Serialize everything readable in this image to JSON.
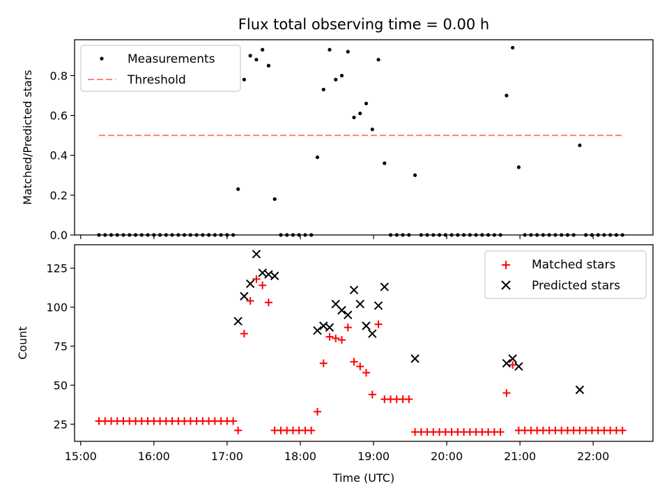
{
  "chart_data": [
    {
      "type": "scatter",
      "title": "Flux total observing time = 0.00 h",
      "ylabel": "Matched/Predicted stars",
      "ylim": [
        0,
        0.98
      ],
      "yticks": [
        "0.0",
        "0.2",
        "0.4",
        "0.6",
        "0.8"
      ],
      "grid": false,
      "legend_position": "upper-left",
      "threshold": 0.5,
      "threshold_range": [
        "15:15",
        "22:25"
      ],
      "threshold_color": "#ff7f7f",
      "marker_color": "#000000",
      "legend": [
        {
          "label": "Measurements",
          "kind": "dot"
        },
        {
          "label": "Threshold",
          "kind": "dashed"
        }
      ],
      "series": [
        {
          "name": "Measurements",
          "x": [
            "15:15",
            "15:20",
            "15:25",
            "15:30",
            "15:35",
            "15:40",
            "15:45",
            "15:50",
            "15:55",
            "16:00",
            "16:05",
            "16:10",
            "16:15",
            "16:20",
            "16:25",
            "16:30",
            "16:35",
            "16:40",
            "16:45",
            "16:50",
            "16:55",
            "17:00",
            "17:05",
            "17:09",
            "17:14",
            "17:19",
            "17:24",
            "17:29",
            "17:34",
            "17:39",
            "17:44",
            "17:49",
            "17:54",
            "17:59",
            "18:04",
            "18:09",
            "18:14",
            "18:19",
            "18:24",
            "18:29",
            "18:34",
            "18:39",
            "18:44",
            "18:49",
            "18:54",
            "18:59",
            "19:04",
            "19:09",
            "19:14",
            "19:19",
            "19:24",
            "19:29",
            "19:34",
            "19:39",
            "19:44",
            "19:49",
            "19:54",
            "19:59",
            "20:04",
            "20:09",
            "20:14",
            "20:19",
            "20:24",
            "20:29",
            "20:34",
            "20:39",
            "20:44",
            "20:49",
            "20:54",
            "20:59",
            "21:04",
            "21:09",
            "21:14",
            "21:19",
            "21:24",
            "21:29",
            "21:34",
            "21:39",
            "21:44",
            "21:49",
            "21:54",
            "21:59",
            "22:04",
            "22:09",
            "22:14",
            "22:19",
            "22:24"
          ],
          "y": [
            0,
            0,
            0,
            0,
            0,
            0,
            0,
            0,
            0,
            0,
            0,
            0,
            0,
            0,
            0,
            0,
            0,
            0,
            0,
            0,
            0,
            0,
            0,
            0.23,
            0.78,
            0.9,
            0.88,
            0.93,
            0.85,
            0.18,
            0,
            0,
            0,
            0,
            0,
            0,
            0.39,
            0.73,
            0.93,
            0.78,
            0.8,
            0.92,
            0.59,
            0.61,
            0.66,
            0.53,
            0.88,
            0.36,
            0,
            0,
            0,
            0,
            0.3,
            0,
            0,
            0,
            0,
            0,
            0,
            0,
            0,
            0,
            0,
            0,
            0,
            0,
            0,
            0.7,
            0.94,
            0.34,
            0,
            0,
            0,
            0,
            0,
            0,
            0,
            0,
            0,
            0.45,
            0,
            0,
            0,
            0,
            0,
            0,
            0
          ]
        }
      ]
    },
    {
      "type": "scatter",
      "xlabel": "Time (UTC)",
      "ylabel": "Count",
      "xlim": [
        "14:55",
        "22:49"
      ],
      "ylim": [
        14,
        140
      ],
      "xticks": [
        "15:00",
        "16:00",
        "17:00",
        "18:00",
        "19:00",
        "20:00",
        "21:00",
        "22:00"
      ],
      "yticks": [
        "25",
        "50",
        "75",
        "100",
        "125"
      ],
      "grid": false,
      "legend_position": "upper-right",
      "legend": [
        {
          "label": "Matched stars",
          "kind": "plus",
          "color": "#ff0000"
        },
        {
          "label": "Predicted stars",
          "kind": "x",
          "color": "#000000"
        }
      ],
      "series": [
        {
          "name": "Matched stars",
          "color": "#ff0000",
          "marker": "+",
          "points": [
            [
              "15:15",
              27
            ],
            [
              "15:20",
              27
            ],
            [
              "15:25",
              27
            ],
            [
              "15:30",
              27
            ],
            [
              "15:35",
              27
            ],
            [
              "15:40",
              27
            ],
            [
              "15:45",
              27
            ],
            [
              "15:50",
              27
            ],
            [
              "15:55",
              27
            ],
            [
              "16:00",
              27
            ],
            [
              "16:05",
              27
            ],
            [
              "16:10",
              27
            ],
            [
              "16:15",
              27
            ],
            [
              "16:20",
              27
            ],
            [
              "16:25",
              27
            ],
            [
              "16:30",
              27
            ],
            [
              "16:35",
              27
            ],
            [
              "16:40",
              27
            ],
            [
              "16:45",
              27
            ],
            [
              "16:50",
              27
            ],
            [
              "16:55",
              27
            ],
            [
              "17:00",
              27
            ],
            [
              "17:05",
              27
            ],
            [
              "17:09",
              21
            ],
            [
              "17:14",
              83
            ],
            [
              "17:19",
              104
            ],
            [
              "17:24",
              118
            ],
            [
              "17:29",
              114
            ],
            [
              "17:34",
              103
            ],
            [
              "17:39",
              21
            ],
            [
              "17:44",
              21
            ],
            [
              "17:49",
              21
            ],
            [
              "17:54",
              21
            ],
            [
              "17:59",
              21
            ],
            [
              "18:04",
              21
            ],
            [
              "18:09",
              21
            ],
            [
              "18:14",
              33
            ],
            [
              "18:19",
              64
            ],
            [
              "18:24",
              81
            ],
            [
              "18:29",
              80
            ],
            [
              "18:34",
              79
            ],
            [
              "18:39",
              87
            ],
            [
              "18:44",
              65
            ],
            [
              "18:49",
              62
            ],
            [
              "18:54",
              58
            ],
            [
              "18:59",
              44
            ],
            [
              "19:04",
              89
            ],
            [
              "19:09",
              41
            ],
            [
              "19:14",
              41
            ],
            [
              "19:19",
              41
            ],
            [
              "19:24",
              41
            ],
            [
              "19:29",
              41
            ],
            [
              "19:34",
              20
            ],
            [
              "19:39",
              20
            ],
            [
              "19:44",
              20
            ],
            [
              "19:49",
              20
            ],
            [
              "19:54",
              20
            ],
            [
              "19:59",
              20
            ],
            [
              "20:04",
              20
            ],
            [
              "20:09",
              20
            ],
            [
              "20:14",
              20
            ],
            [
              "20:19",
              20
            ],
            [
              "20:24",
              20
            ],
            [
              "20:29",
              20
            ],
            [
              "20:34",
              20
            ],
            [
              "20:39",
              20
            ],
            [
              "20:44",
              20
            ],
            [
              "20:49",
              45
            ],
            [
              "20:54",
              63
            ],
            [
              "20:59",
              21
            ],
            [
              "21:04",
              21
            ],
            [
              "21:09",
              21
            ],
            [
              "21:14",
              21
            ],
            [
              "21:19",
              21
            ],
            [
              "21:24",
              21
            ],
            [
              "21:29",
              21
            ],
            [
              "21:34",
              21
            ],
            [
              "21:39",
              21
            ],
            [
              "21:44",
              21
            ],
            [
              "21:49",
              21
            ],
            [
              "21:54",
              21
            ],
            [
              "21:59",
              21
            ],
            [
              "22:04",
              21
            ],
            [
              "22:09",
              21
            ],
            [
              "22:14",
              21
            ],
            [
              "22:19",
              21
            ],
            [
              "22:24",
              21
            ]
          ]
        },
        {
          "name": "Predicted stars",
          "color": "#000000",
          "marker": "x",
          "points": [
            [
              "17:09",
              91
            ],
            [
              "17:14",
              107
            ],
            [
              "17:19",
              115
            ],
            [
              "17:24",
              134
            ],
            [
              "17:29",
              122
            ],
            [
              "17:34",
              121
            ],
            [
              "17:39",
              120
            ],
            [
              "18:14",
              85
            ],
            [
              "18:19",
              88
            ],
            [
              "18:24",
              87
            ],
            [
              "18:29",
              102
            ],
            [
              "18:34",
              98
            ],
            [
              "18:39",
              95
            ],
            [
              "18:44",
              111
            ],
            [
              "18:49",
              102
            ],
            [
              "18:54",
              88
            ],
            [
              "18:59",
              83
            ],
            [
              "19:04",
              101
            ],
            [
              "19:09",
              113
            ],
            [
              "19:34",
              67
            ],
            [
              "20:49",
              64
            ],
            [
              "20:54",
              67
            ],
            [
              "20:59",
              62
            ],
            [
              "21:49",
              47
            ]
          ]
        }
      ]
    }
  ]
}
